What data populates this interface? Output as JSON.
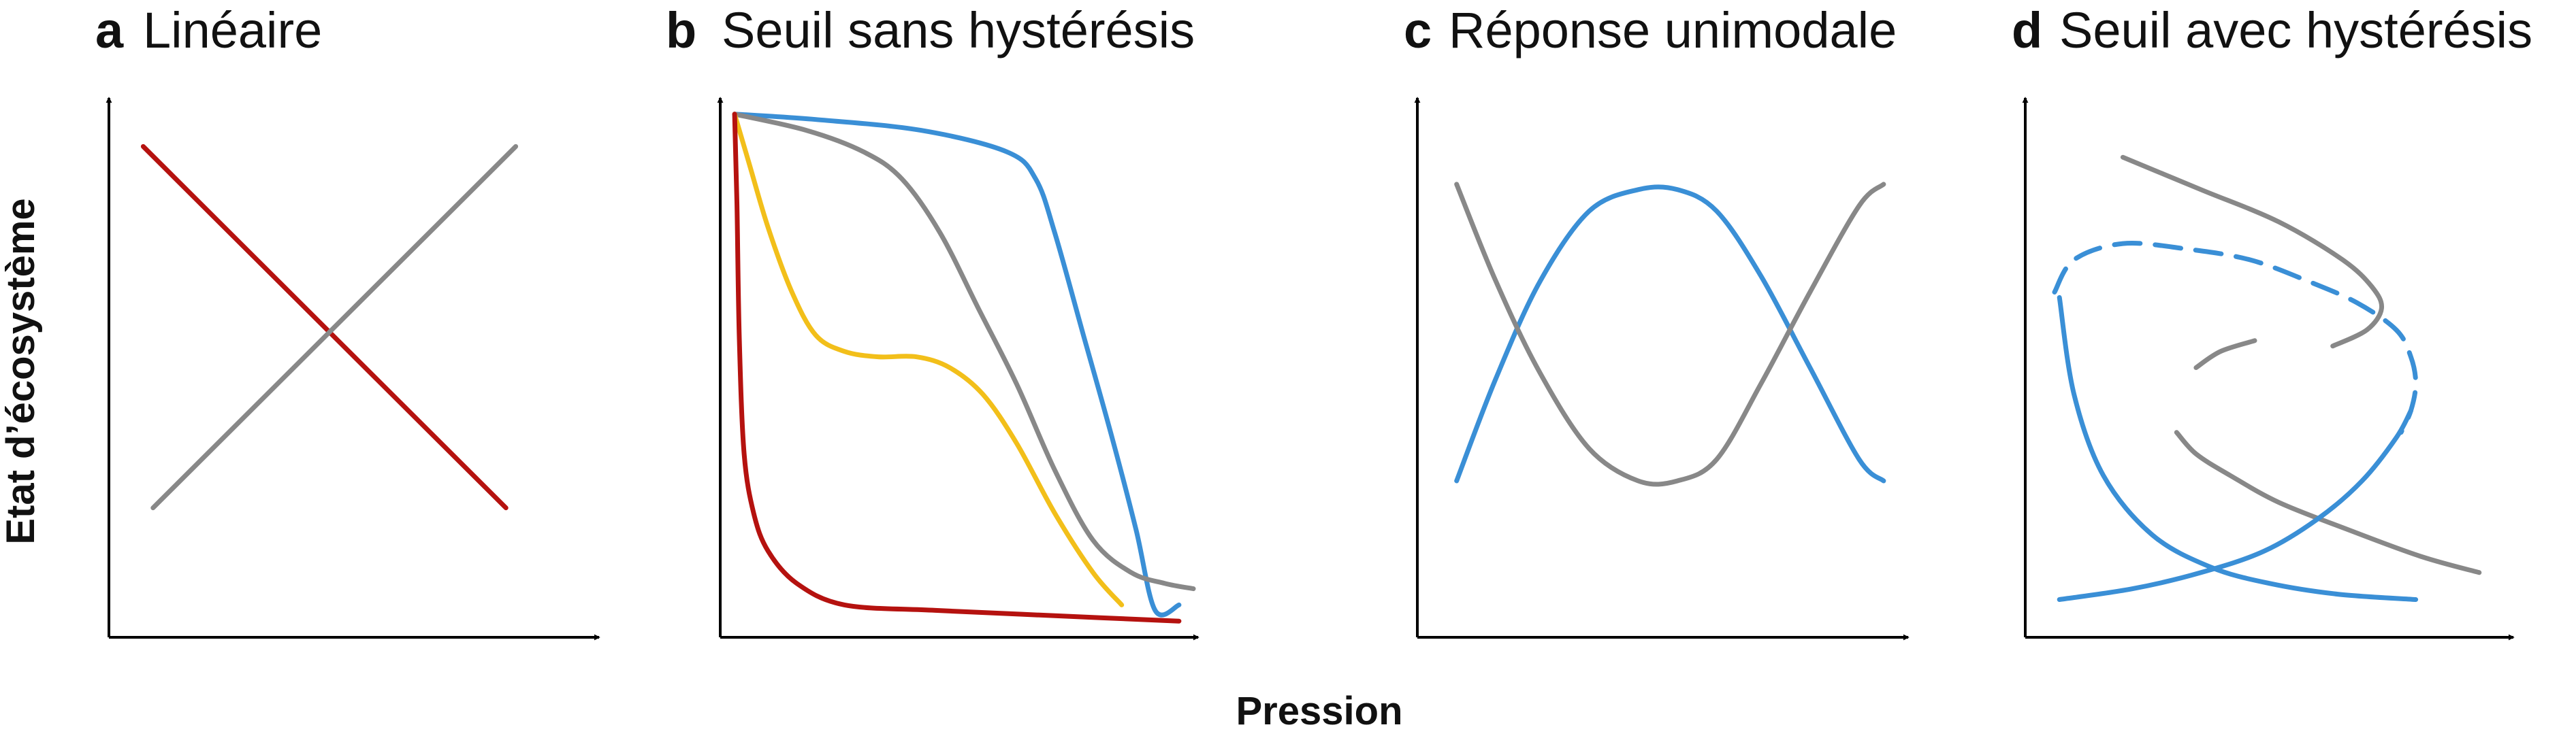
{
  "colors": {
    "red": "#b5120f",
    "grey": "#888888",
    "blue": "#3a8fd6",
    "yellow": "#f2bf1a",
    "axis": "#000000"
  },
  "labels": {
    "ylabel": "Etat d’écosystème",
    "xlabel": "Pression"
  },
  "chart_data": [
    {
      "type": "line",
      "panel_letter": "a",
      "title": "Linéaire",
      "xlabel": "Pression",
      "ylabel": "Etat d’écosystème",
      "xlim": [
        0,
        1
      ],
      "ylim": [
        0,
        1
      ],
      "series": [
        {
          "color": "red",
          "x": [
            0.07,
            0.81
          ],
          "y": [
            0.91,
            0.24
          ]
        },
        {
          "color": "grey",
          "x": [
            0.09,
            0.83
          ],
          "y": [
            0.24,
            0.91
          ]
        }
      ]
    },
    {
      "type": "line",
      "panel_letter": "b",
      "title": "Seuil sans hystérésis",
      "xlabel": "Pression",
      "ylabel": "Etat d’écosystème",
      "xlim": [
        0,
        1
      ],
      "ylim": [
        0,
        1
      ],
      "series": [
        {
          "color": "blue",
          "x": [
            0.03,
            0.2,
            0.42,
            0.6,
            0.66,
            0.7,
            0.76,
            0.82,
            0.87,
            0.91,
            0.96
          ],
          "y": [
            0.97,
            0.96,
            0.94,
            0.9,
            0.85,
            0.75,
            0.56,
            0.37,
            0.2,
            0.05,
            0.06
          ]
        },
        {
          "color": "grey",
          "x": [
            0.03,
            0.18,
            0.3,
            0.38,
            0.46,
            0.54,
            0.62,
            0.7,
            0.78,
            0.86,
            0.93,
            0.99
          ],
          "y": [
            0.97,
            0.94,
            0.9,
            0.85,
            0.75,
            0.61,
            0.47,
            0.31,
            0.18,
            0.12,
            0.1,
            0.09
          ]
        },
        {
          "color": "yellow",
          "x": [
            0.03,
            0.06,
            0.1,
            0.15,
            0.2,
            0.26,
            0.33,
            0.41,
            0.48,
            0.55,
            0.62,
            0.7,
            0.78,
            0.84
          ],
          "y": [
            0.97,
            0.88,
            0.76,
            0.64,
            0.56,
            0.53,
            0.52,
            0.52,
            0.5,
            0.45,
            0.36,
            0.23,
            0.12,
            0.06
          ]
        },
        {
          "color": "red",
          "x": [
            0.03,
            0.035,
            0.04,
            0.05,
            0.07,
            0.1,
            0.16,
            0.26,
            0.45,
            0.7,
            0.96
          ],
          "y": [
            0.97,
            0.8,
            0.55,
            0.34,
            0.23,
            0.16,
            0.1,
            0.06,
            0.05,
            0.04,
            0.03
          ]
        }
      ]
    },
    {
      "type": "line",
      "panel_letter": "c",
      "title": "Réponse unimodale",
      "xlabel": "Pression",
      "ylabel": "Etat d’écosystème",
      "xlim": [
        0,
        1
      ],
      "ylim": [
        0,
        1
      ],
      "series": [
        {
          "color": "blue",
          "x": [
            0.08,
            0.16,
            0.25,
            0.35,
            0.45,
            0.53,
            0.61,
            0.7,
            0.8,
            0.9,
            0.95
          ],
          "y": [
            0.29,
            0.48,
            0.66,
            0.79,
            0.83,
            0.83,
            0.79,
            0.67,
            0.5,
            0.33,
            0.29
          ]
        },
        {
          "color": "grey",
          "x": [
            0.08,
            0.16,
            0.25,
            0.35,
            0.45,
            0.53,
            0.61,
            0.7,
            0.8,
            0.9,
            0.95
          ],
          "y": [
            0.84,
            0.66,
            0.49,
            0.35,
            0.29,
            0.29,
            0.33,
            0.47,
            0.64,
            0.8,
            0.84
          ]
        }
      ]
    },
    {
      "type": "line",
      "panel_letter": "d",
      "title": "Seuil avec hystérésis",
      "xlabel": "Pression",
      "ylabel": "Etat d’écosystème",
      "xlim": [
        0,
        1
      ],
      "ylim": [
        0,
        1
      ],
      "series": [
        {
          "color": "grey",
          "style": "solid",
          "x": [
            0.2,
            0.36,
            0.52,
            0.65,
            0.71,
            0.73,
            0.7,
            0.63
          ],
          "y": [
            0.89,
            0.83,
            0.77,
            0.7,
            0.65,
            0.61,
            0.57,
            0.54
          ]
        },
        {
          "color": "grey",
          "style": "solid",
          "x": [
            0.35,
            0.4,
            0.47
          ],
          "y": [
            0.5,
            0.53,
            0.55
          ]
        },
        {
          "color": "grey",
          "style": "solid",
          "x": [
            0.31,
            0.35,
            0.42,
            0.52,
            0.66,
            0.81,
            0.93
          ],
          "y": [
            0.38,
            0.34,
            0.3,
            0.25,
            0.2,
            0.15,
            0.12
          ]
        },
        {
          "color": "blue",
          "style": "dashed",
          "x": [
            0.06,
            0.1,
            0.2,
            0.33,
            0.46,
            0.58,
            0.68,
            0.76,
            0.79,
            0.8,
            0.79,
            0.77
          ],
          "y": [
            0.64,
            0.7,
            0.73,
            0.72,
            0.7,
            0.66,
            0.62,
            0.57,
            0.52,
            0.47,
            0.42,
            0.38
          ]
        },
        {
          "color": "blue",
          "style": "solid",
          "x": [
            0.07,
            0.1,
            0.16,
            0.26,
            0.38,
            0.5,
            0.64,
            0.8
          ],
          "y": [
            0.63,
            0.45,
            0.3,
            0.19,
            0.13,
            0.1,
            0.08,
            0.07
          ]
        },
        {
          "color": "blue",
          "style": "solid",
          "x": [
            0.07,
            0.22,
            0.36,
            0.49,
            0.6,
            0.69,
            0.76,
            0.79
          ],
          "y": [
            0.07,
            0.09,
            0.12,
            0.16,
            0.22,
            0.29,
            0.37,
            0.42
          ]
        }
      ]
    }
  ]
}
